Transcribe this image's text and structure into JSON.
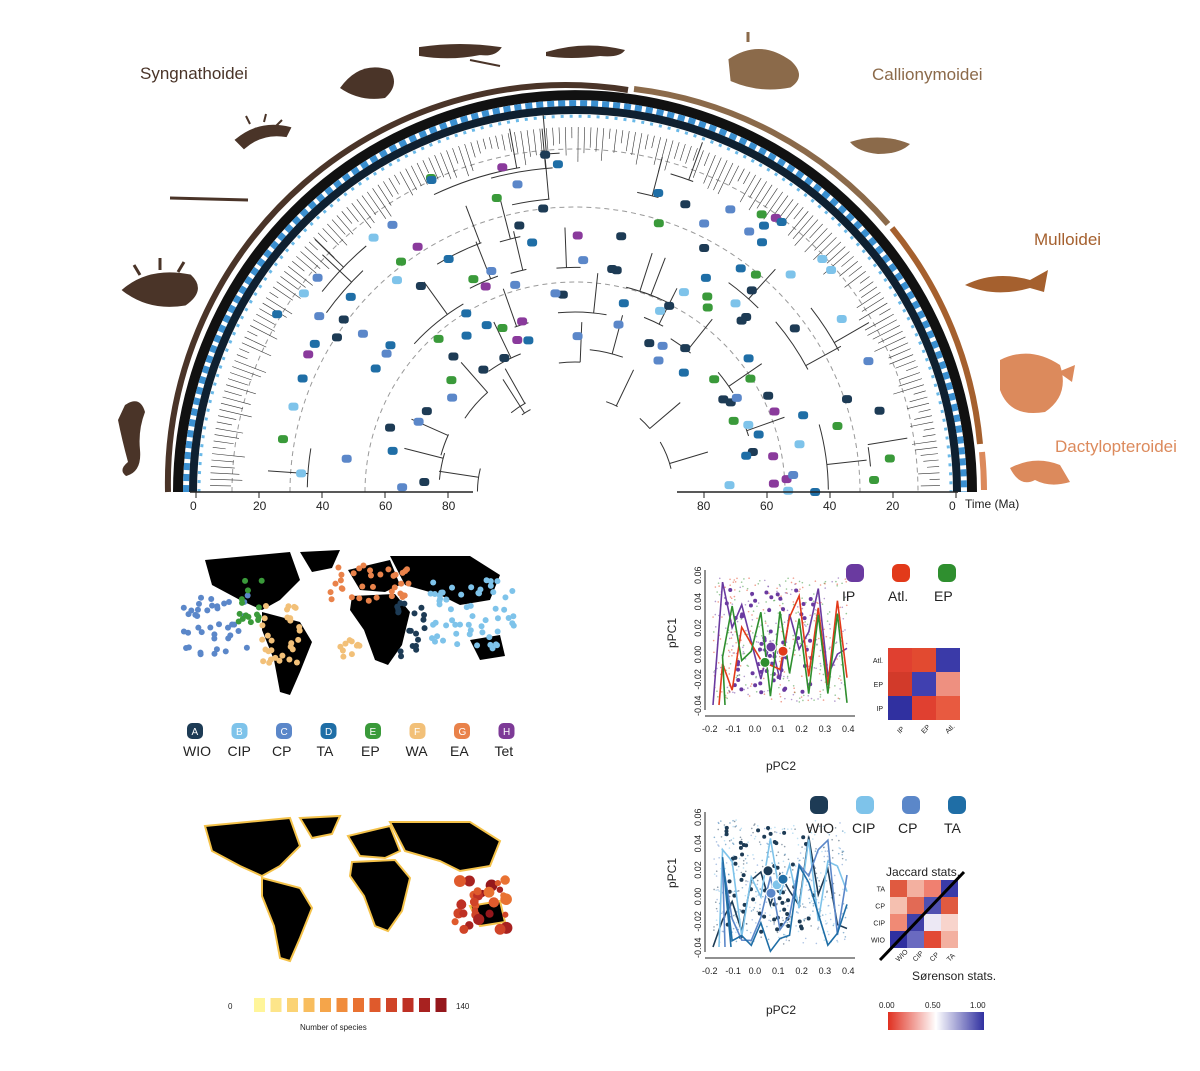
{
  "clades": [
    {
      "name": "Syngnathoidei",
      "color": "#4a3428"
    },
    {
      "name": "Callionymoidei",
      "color": "#8b6a4a"
    },
    {
      "name": "Mulloidei",
      "color": "#a5602e"
    },
    {
      "name": "Dactylopteroidei",
      "color": "#dc8a5c"
    }
  ],
  "tree": {
    "left_axis_ticks": [
      "0",
      "20",
      "40",
      "60",
      "80"
    ],
    "right_axis_ticks": [
      "80",
      "60",
      "40",
      "20",
      "0"
    ],
    "time_label": "Time (Ma)"
  },
  "region_legend": [
    {
      "letter": "A",
      "label": "WIO",
      "color": "#1d3b55"
    },
    {
      "letter": "B",
      "label": "CIP",
      "color": "#7ec3ea"
    },
    {
      "letter": "C",
      "label": "CP",
      "color": "#5b87c9"
    },
    {
      "letter": "D",
      "label": "TA",
      "color": "#1f6ea6"
    },
    {
      "letter": "E",
      "label": "EP",
      "color": "#3a9a3a"
    },
    {
      "letter": "F",
      "label": "WA",
      "color": "#f2c078"
    },
    {
      "letter": "G",
      "label": "EA",
      "color": "#e9824a"
    },
    {
      "letter": "H",
      "label": "Tet",
      "color": "#7d3a97"
    }
  ],
  "species_scale": {
    "min_label": "0",
    "max_label": "140",
    "title": "Number of species",
    "colors": [
      "#fff59a",
      "#fde58a",
      "#fbd374",
      "#f8bd5e",
      "#f5a54a",
      "#f08c3c",
      "#e97232",
      "#df5a2c",
      "#d04428",
      "#be3024",
      "#a82220",
      "#95171c"
    ]
  },
  "pca_top": {
    "ylabel": "pPC1",
    "xlabel": "pPC2",
    "xticks": [
      "-0.2",
      "-0.1",
      "0.0",
      "0.1",
      "0.2",
      "0.3",
      "0.4"
    ],
    "yticks": [
      "-0.04",
      "-0.02",
      "0.00",
      "0.02",
      "0.04",
      "0.06"
    ],
    "legend": [
      {
        "label": "IP",
        "color": "#6a3aa0"
      },
      {
        "label": "Atl.",
        "color": "#e23a1a"
      },
      {
        "label": "EP",
        "color": "#2f8f2f"
      }
    ],
    "matrix_rows": [
      "Atl.",
      "EP",
      "IP"
    ],
    "matrix_cols": [
      "IP",
      "EP",
      "Atl."
    ]
  },
  "pca_bottom": {
    "ylabel": "pPC1",
    "xlabel": "pPC2",
    "xticks": [
      "-0.2",
      "-0.1",
      "0.0",
      "0.1",
      "0.2",
      "0.3",
      "0.4"
    ],
    "yticks": [
      "-0.04",
      "-0.02",
      "0.00",
      "0.02",
      "0.04",
      "0.06"
    ],
    "legend": [
      {
        "label": "WIO",
        "color": "#1d3b55"
      },
      {
        "label": "CIP",
        "color": "#7ec3ea"
      },
      {
        "label": "CP",
        "color": "#5b87c9"
      },
      {
        "label": "TA",
        "color": "#1f6ea6"
      }
    ],
    "matrix_rows": [
      "TA",
      "CP",
      "CIP",
      "WIO"
    ],
    "matrix_cols": [
      "WIO",
      "CIP",
      "CP",
      "TA"
    ],
    "jaccard_label": "Jaccard stats.",
    "sorenson_label": "Sørenson stats.",
    "scale_labels": [
      "0.00",
      "0.50",
      "1.00"
    ]
  }
}
